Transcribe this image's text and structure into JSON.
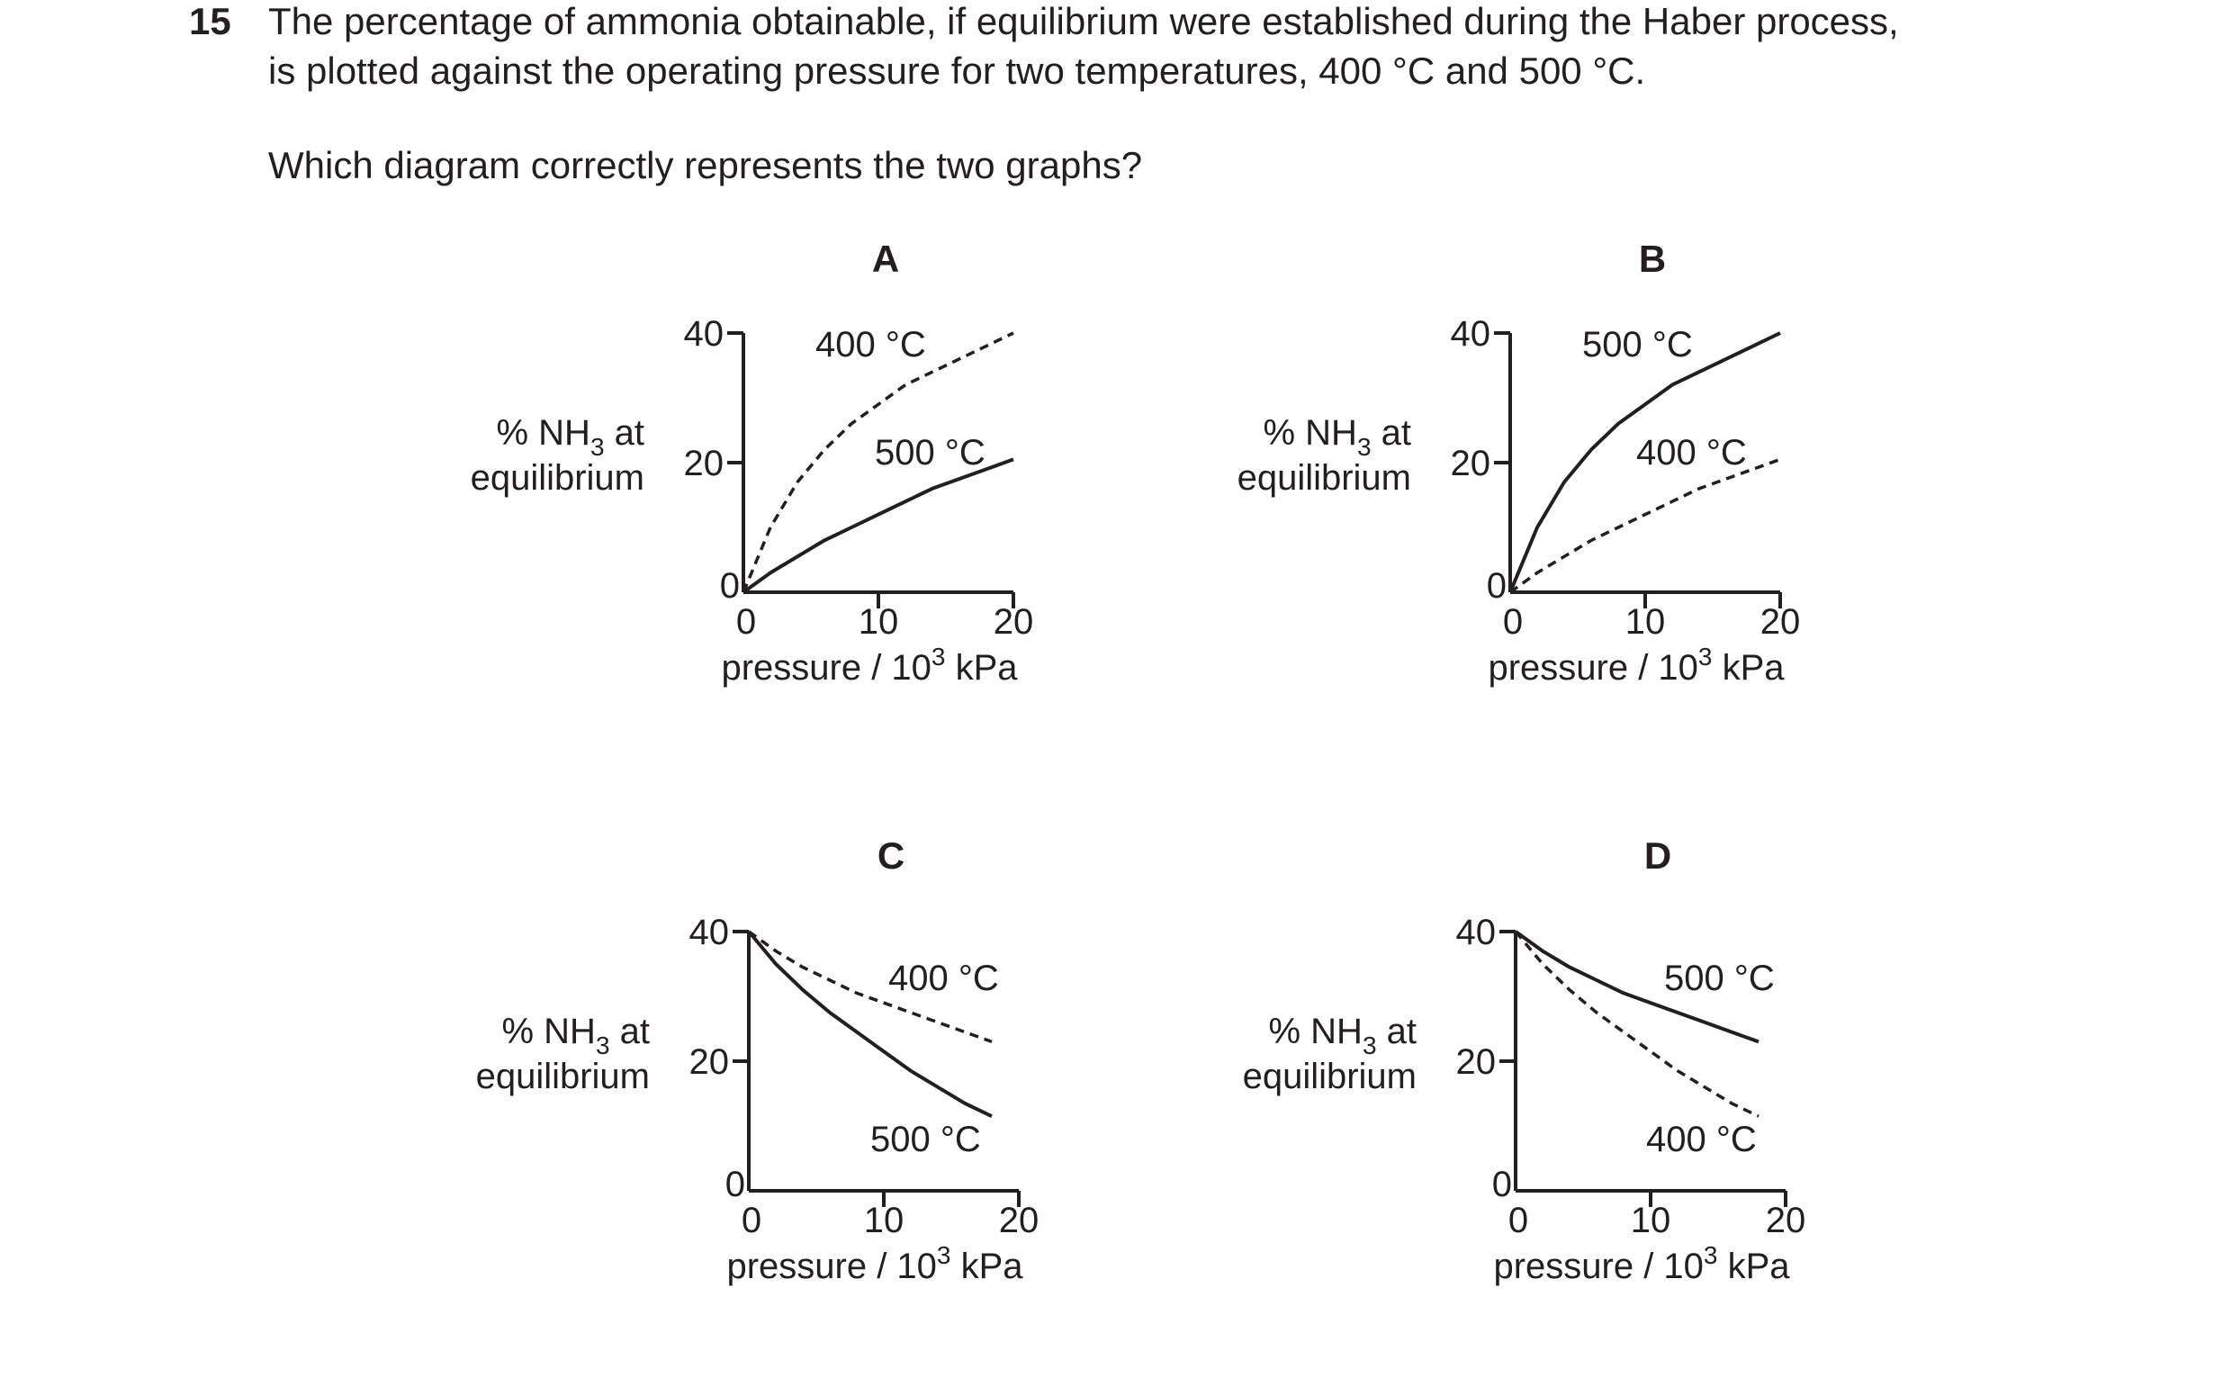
{
  "question": {
    "number": "15",
    "line1": "The percentage of ammonia obtainable, if equilibrium were established during the Haber process,",
    "line2": "is plotted against the operating pressure for two temperatures, 400 °C and 500 °C.",
    "prompt": "Which diagram correctly represents the two graphs?"
  },
  "chart_data": [
    {
      "type": "line",
      "label": "A",
      "ylabel": [
        "% NH",
        "3",
        " at",
        "equilibrium"
      ],
      "xlabel": [
        "pressure / 10",
        "3",
        " kPa"
      ],
      "xlim": [
        0,
        20
      ],
      "ylim": [
        0,
        40
      ],
      "xticks": [
        "0",
        "10",
        "20"
      ],
      "yticks": [
        "0",
        "20",
        "40"
      ],
      "series": [
        {
          "name": "400 °C",
          "style": "dashed",
          "x": [
            0,
            2,
            4,
            6,
            8,
            10,
            12,
            14,
            16,
            18,
            20
          ],
          "y": [
            0,
            10,
            17,
            22,
            26,
            29,
            32,
            34,
            36,
            38,
            40
          ]
        },
        {
          "name": "500 °C",
          "style": "solid",
          "x": [
            0,
            2,
            4,
            6,
            8,
            10,
            12,
            14,
            16,
            18,
            20
          ],
          "y": [
            0,
            3,
            5.5,
            8,
            10,
            12,
            14,
            16,
            17.5,
            19,
            20.5
          ]
        }
      ]
    },
    {
      "type": "line",
      "label": "B",
      "ylabel": [
        "% NH",
        "3",
        " at",
        "equilibrium"
      ],
      "xlabel": [
        "pressure / 10",
        "3",
        " kPa"
      ],
      "xlim": [
        0,
        20
      ],
      "ylim": [
        0,
        40
      ],
      "xticks": [
        "0",
        "10",
        "20"
      ],
      "yticks": [
        "0",
        "20",
        "40"
      ],
      "series": [
        {
          "name": "500 °C",
          "style": "solid",
          "x": [
            0,
            2,
            4,
            6,
            8,
            10,
            12,
            14,
            16,
            18,
            20
          ],
          "y": [
            0,
            10,
            17,
            22,
            26,
            29,
            32,
            34,
            36,
            38,
            40
          ]
        },
        {
          "name": "400 °C",
          "style": "dashed",
          "x": [
            0,
            2,
            4,
            6,
            8,
            10,
            12,
            14,
            16,
            18,
            20
          ],
          "y": [
            0,
            3,
            5.5,
            8,
            10,
            12,
            14,
            16,
            17.5,
            19,
            20.5
          ]
        }
      ]
    },
    {
      "type": "line",
      "label": "C",
      "ylabel": [
        "% NH",
        "3",
        " at",
        "equilibrium"
      ],
      "xlabel": [
        "pressure / 10",
        "3",
        " kPa"
      ],
      "xlim": [
        0,
        20
      ],
      "ylim": [
        0,
        40
      ],
      "xticks": [
        "0",
        "10",
        "20"
      ],
      "yticks": [
        "0",
        "20",
        "40"
      ],
      "series": [
        {
          "name": "400 °C",
          "style": "dashed",
          "x": [
            0,
            2,
            4,
            6,
            8,
            10,
            12,
            14,
            16,
            18
          ],
          "y": [
            40,
            37,
            34.5,
            32.5,
            30.5,
            29,
            27.5,
            26,
            24.5,
            23
          ]
        },
        {
          "name": "500 °C",
          "style": "solid",
          "x": [
            0,
            2,
            4,
            6,
            8,
            10,
            12,
            14,
            16,
            18
          ],
          "y": [
            40,
            35,
            31,
            27.5,
            24.5,
            21.5,
            18.5,
            16,
            13.5,
            11.5
          ]
        }
      ]
    },
    {
      "type": "line",
      "label": "D",
      "ylabel": [
        "% NH",
        "3",
        " at",
        "equilibrium"
      ],
      "xlabel": [
        "pressure / 10",
        "3",
        " kPa"
      ],
      "xlim": [
        0,
        20
      ],
      "ylim": [
        0,
        40
      ],
      "xticks": [
        "0",
        "10",
        "20"
      ],
      "yticks": [
        "0",
        "20",
        "40"
      ],
      "series": [
        {
          "name": "500 °C",
          "style": "solid",
          "x": [
            0,
            2,
            4,
            6,
            8,
            10,
            12,
            14,
            16,
            18
          ],
          "y": [
            40,
            37,
            34.5,
            32.5,
            30.5,
            29,
            27.5,
            26,
            24.5,
            23
          ]
        },
        {
          "name": "400 °C",
          "style": "dashed",
          "x": [
            0,
            2,
            4,
            6,
            8,
            10,
            12,
            14,
            16,
            18
          ],
          "y": [
            40,
            35,
            31,
            27.5,
            24.5,
            21.5,
            18.5,
            16,
            13.5,
            11.5
          ]
        }
      ]
    }
  ]
}
